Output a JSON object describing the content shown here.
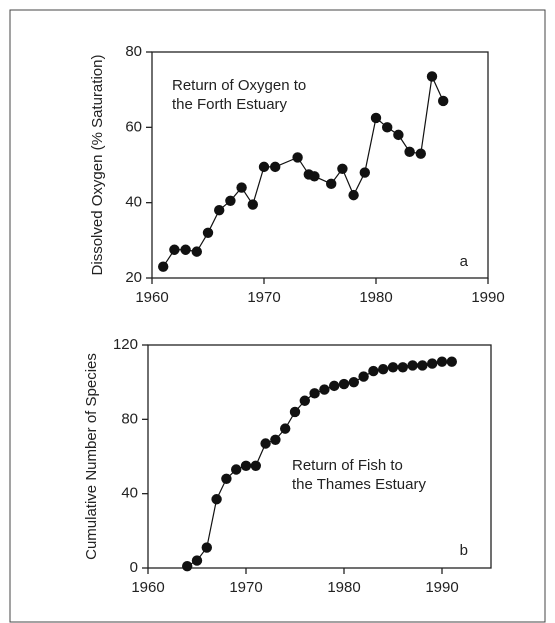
{
  "chart_data": [
    {
      "type": "line",
      "ylabel": "Dissolved Oxygen (% Saturation)",
      "annotation": [
        "Return of Oxygen to",
        "the Forth Estuary"
      ],
      "panel_label": "a",
      "x": [
        1961,
        1962,
        1963,
        1964,
        1965,
        1966,
        1967,
        1968,
        1969,
        1970,
        1971,
        1973,
        1974,
        1974.5,
        1976,
        1977,
        1978,
        1979,
        1980,
        1981,
        1982,
        1983,
        1984,
        1985,
        1986
      ],
      "values": [
        23,
        27.5,
        27.5,
        27,
        32,
        38,
        40.5,
        44,
        39.5,
        49.5,
        49.5,
        52,
        47.5,
        47,
        45,
        49,
        42,
        48,
        62.5,
        60,
        58,
        53.5,
        53,
        73.5,
        67
      ],
      "color": "#111111",
      "xlim": [
        1960,
        1990
      ],
      "xticks": [
        1960,
        1970,
        1980,
        1990
      ],
      "ylim": [
        20,
        80
      ],
      "yticks": [
        20,
        40,
        60,
        80
      ]
    },
    {
      "type": "line",
      "ylabel": "Cumulative Number of Species",
      "annotation": [
        "Return of Fish to",
        "the Thames Estuary"
      ],
      "panel_label": "b",
      "x": [
        1964,
        1965,
        1966,
        1967,
        1968,
        1969,
        1970,
        1971,
        1972,
        1973,
        1974,
        1975,
        1976,
        1977,
        1978,
        1979,
        1980,
        1981,
        1982,
        1983,
        1984,
        1985,
        1986,
        1987,
        1988,
        1989,
        1990,
        1991
      ],
      "values": [
        1,
        4,
        11,
        37,
        48,
        53,
        55,
        55,
        67,
        69,
        75,
        84,
        90,
        94,
        96,
        98,
        99,
        100,
        103,
        106,
        107,
        108,
        108,
        109,
        109,
        110,
        111,
        111
      ],
      "color": "#111111",
      "xlim": [
        1960,
        1995
      ],
      "xticks": [
        1960,
        1970,
        1980,
        1990
      ],
      "ylim": [
        0,
        120
      ],
      "yticks": [
        0,
        40,
        80,
        120
      ]
    }
  ]
}
